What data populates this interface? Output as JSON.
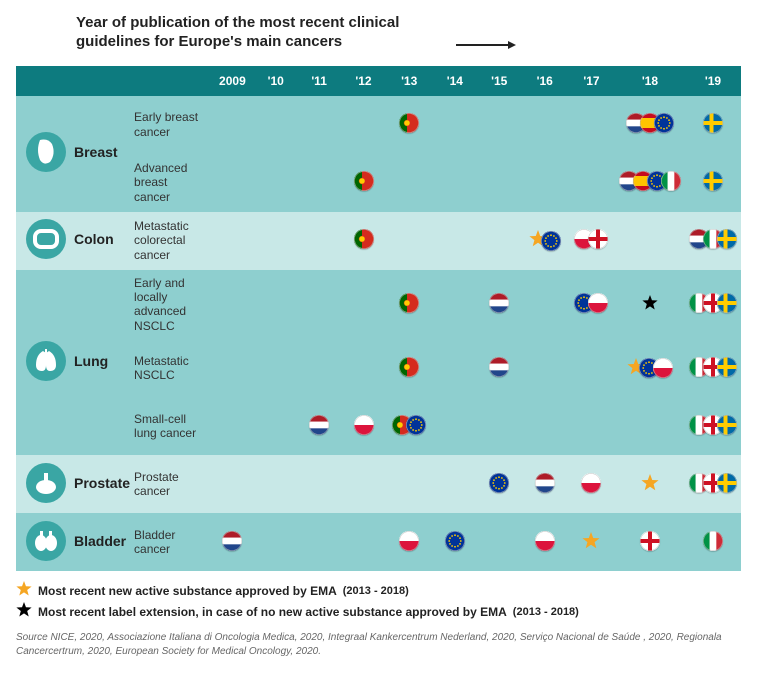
{
  "title": "Year of publication of the most recent clinical guidelines for Europe's main cancers",
  "years": [
    "2009",
    "'10",
    "'11",
    "'12",
    "'13",
    "'14",
    "'15",
    "'16",
    "'17",
    "'18",
    "'19"
  ],
  "colors": {
    "header_bg": "#0d7b7f",
    "band_dark": "#8ecfcf",
    "band_light": "#c8e8e7",
    "icon_circle": "#3aa6a4",
    "text": "#222222",
    "shadow": "#d9d9d9",
    "star_gold": "#f5a623",
    "star_black": "#000000"
  },
  "flag_size": 20,
  "categories": [
    {
      "name": "Breast",
      "icon": "breast",
      "subs": [
        {
          "label": "Early breast cancer",
          "cells": {
            "13": [
              "pt"
            ],
            "18": [
              "nl",
              "es",
              "eu"
            ],
            "19": [
              "se"
            ]
          }
        },
        {
          "label": "Advanced breast cancer",
          "cells": {
            "12": [
              "pt"
            ],
            "18": [
              "nl",
              "es",
              "eu",
              "it"
            ],
            "19": [
              "se"
            ]
          }
        }
      ]
    },
    {
      "name": "Colon",
      "icon": "colon",
      "subs": [
        {
          "label": "Metastatic colorectal cancer",
          "cells": {
            "12": [
              "pt"
            ],
            "16": [
              "star",
              "eu"
            ],
            "17": [
              "pl",
              "en"
            ],
            "19": [
              "nl",
              "it",
              "se"
            ]
          }
        }
      ]
    },
    {
      "name": "Lung",
      "icon": "lung",
      "subs": [
        {
          "label": "Early and locally advanced NSCLC",
          "cells": {
            "13": [
              "pt"
            ],
            "15": [
              "nl"
            ],
            "17": [
              "eu",
              "pl"
            ],
            "18": [
              "blackstar"
            ],
            "19": [
              "it",
              "en",
              "se"
            ]
          }
        },
        {
          "label": "Metastatic NSCLC",
          "cells": {
            "13": [
              "pt"
            ],
            "15": [
              "nl"
            ],
            "18": [
              "star",
              "eu",
              "pl"
            ],
            "19": [
              "it",
              "en",
              "se"
            ]
          }
        },
        {
          "label": "Small-cell lung cancer",
          "cells": {
            "11": [
              "nl"
            ],
            "12": [
              "pl"
            ],
            "13": [
              "pt",
              "eu"
            ],
            "19": [
              "it",
              "en",
              "se"
            ]
          }
        }
      ]
    },
    {
      "name": "Prostate",
      "icon": "prostate",
      "subs": [
        {
          "label": "Prostate cancer",
          "cells": {
            "15": [
              "eu"
            ],
            "16": [
              "nl"
            ],
            "17": [
              "pl"
            ],
            "18": [
              "star"
            ],
            "19": [
              "it",
              "en",
              "se"
            ]
          }
        }
      ]
    },
    {
      "name": "Bladder",
      "icon": "bladder",
      "subs": [
        {
          "label": "Bladder cancer",
          "cells": {
            "09": [
              "nl"
            ],
            "13": [
              "pl"
            ],
            "14": [
              "eu"
            ],
            "16": [
              "pl"
            ],
            "17": [
              "star"
            ],
            "18": [
              "en"
            ],
            "19": [
              "it"
            ]
          }
        }
      ]
    }
  ],
  "legend": {
    "gold": {
      "label": "Most recent new active substance approved by EMA",
      "paren": "(2013 - 2018)"
    },
    "black": {
      "label": "Most recent label extension, in case of no new active substance  approved by EMA",
      "paren": "(2013 - 2018)"
    }
  },
  "source": "Source NICE, 2020, Associazione Italiana di Oncologia Medica, 2020, Integraal Kankercentrum Nederland, 2020, Serviço Nacional de Saúde , 2020, Regionala Cancercertrum, 2020, European Society for Medical Oncology, 2020."
}
